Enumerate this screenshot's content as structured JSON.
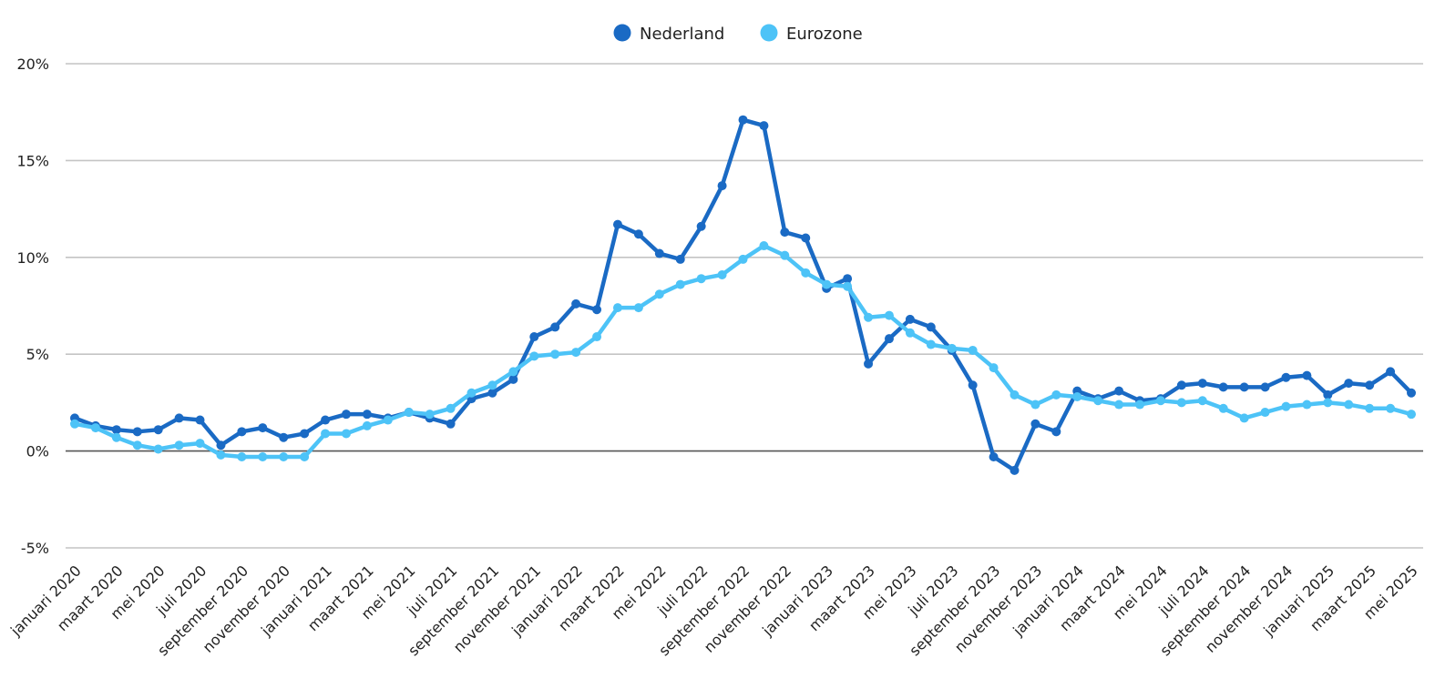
{
  "chart_data": {
    "type": "line",
    "title": "",
    "xlabel": "",
    "ylabel": "",
    "ylim": [
      -5,
      20
    ],
    "yticks": [
      "-5%",
      "0%",
      "5%",
      "10%",
      "15%",
      "20%"
    ],
    "ytick_values": [
      -5,
      0,
      5,
      10,
      15,
      20
    ],
    "grid": true,
    "legend": "top-center",
    "x": [
      "januari 2020",
      "februari 2020",
      "maart 2020",
      "april 2020",
      "mei 2020",
      "juni 2020",
      "juli 2020",
      "augustus 2020",
      "september 2020",
      "oktober 2020",
      "november 2020",
      "december 2020",
      "januari 2021",
      "februari 2021",
      "maart 2021",
      "april 2021",
      "mei 2021",
      "juni 2021",
      "juli 2021",
      "augustus 2021",
      "september 2021",
      "oktober 2021",
      "november 2021",
      "december 2021",
      "januari 2022",
      "februari 2022",
      "maart 2022",
      "april 2022",
      "mei 2022",
      "juni 2022",
      "juli 2022",
      "augustus 2022",
      "september 2022",
      "oktober 2022",
      "november 2022",
      "december 2022",
      "januari 2023",
      "februari 2023",
      "maart 2023",
      "april 2023",
      "mei 2023",
      "juni 2023",
      "juli 2023",
      "augustus 2023",
      "september 2023",
      "oktober 2023",
      "november 2023",
      "december 2023",
      "januari 2024",
      "februari 2024",
      "maart 2024",
      "april 2024",
      "mei 2024",
      "juni 2024",
      "juli 2024",
      "augustus 2024",
      "september 2024",
      "oktober 2024",
      "november 2024",
      "december 2024",
      "januari 2025",
      "februari 2025",
      "maart 2025",
      "april 2025",
      "mei 2025"
    ],
    "xtick_labels": [
      "januari 2020",
      "maart 2020",
      "mei 2020",
      "juli 2020",
      "september 2020",
      "november 2020",
      "januari 2021",
      "maart 2021",
      "mei 2021",
      "juli 2021",
      "september 2021",
      "november 2021",
      "januari 2022",
      "maart 2022",
      "mei 2022",
      "juli 2022",
      "september 2022",
      "november 2022",
      "januari 2023",
      "maart 2023",
      "mei 2023",
      "juli 2023",
      "september 2023",
      "november 2023",
      "januari 2024",
      "maart 2024",
      "mei 2024",
      "juli 2024",
      "september 2024",
      "november 2024",
      "januari 2025",
      "maart 2025",
      "mei 2025"
    ],
    "series": [
      {
        "name": "Nederland",
        "color": "#1a6ac4",
        "values": [
          1.7,
          1.3,
          1.1,
          1.0,
          1.1,
          1.7,
          1.6,
          0.3,
          1.0,
          1.2,
          0.7,
          0.9,
          1.6,
          1.9,
          1.9,
          1.7,
          2.0,
          1.7,
          1.4,
          2.7,
          3.0,
          3.7,
          5.9,
          6.4,
          7.6,
          7.3,
          11.7,
          11.2,
          10.2,
          9.9,
          11.6,
          13.7,
          17.1,
          16.8,
          11.3,
          11.0,
          8.4,
          8.9,
          4.5,
          5.8,
          6.8,
          6.4,
          5.2,
          3.4,
          -0.3,
          -1.0,
          1.4,
          1.0,
          3.1,
          2.7,
          3.1,
          2.6,
          2.7,
          3.4,
          3.5,
          3.3,
          3.3,
          3.3,
          3.8,
          3.9,
          2.9,
          3.5,
          3.4,
          4.1,
          3.0
        ]
      },
      {
        "name": "Eurozone",
        "color": "#4dc3f7",
        "values": [
          1.4,
          1.2,
          0.7,
          0.3,
          0.1,
          0.3,
          0.4,
          -0.2,
          -0.3,
          -0.3,
          -0.3,
          -0.3,
          0.9,
          0.9,
          1.3,
          1.6,
          2.0,
          1.9,
          2.2,
          3.0,
          3.4,
          4.1,
          4.9,
          5.0,
          5.1,
          5.9,
          7.4,
          7.4,
          8.1,
          8.6,
          8.9,
          9.1,
          9.9,
          10.6,
          10.1,
          9.2,
          8.6,
          8.5,
          6.9,
          7.0,
          6.1,
          5.5,
          5.3,
          5.2,
          4.3,
          2.9,
          2.4,
          2.9,
          2.8,
          2.6,
          2.4,
          2.4,
          2.6,
          2.5,
          2.6,
          2.2,
          1.7,
          2.0,
          2.3,
          2.4,
          2.5,
          2.4,
          2.2,
          2.2,
          1.9
        ]
      }
    ]
  }
}
